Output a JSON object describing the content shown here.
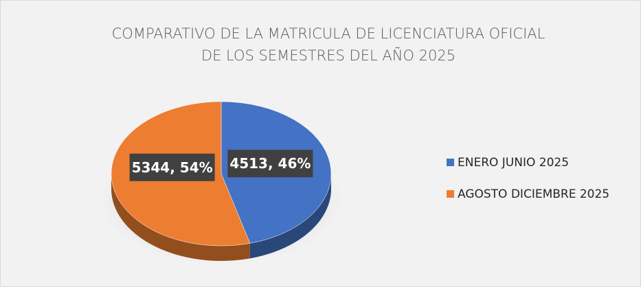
{
  "chart_data": {
    "type": "pie",
    "title": [
      "COMPARATIVO DE LA MATRICULA DE LICENCIATURA OFICIAL",
      "DE LOS SEMESTRES DEL AÑO 2025"
    ],
    "categories": [
      "ENERO JUNIO 2025",
      "AGOSTO DICIEMBRE 2025"
    ],
    "values": [
      4513,
      5344
    ],
    "value_labels": [
      "4513, 46%",
      "5344, 54%"
    ],
    "colors": [
      "#4472c4",
      "#ed7d31"
    ],
    "legend": "right"
  }
}
